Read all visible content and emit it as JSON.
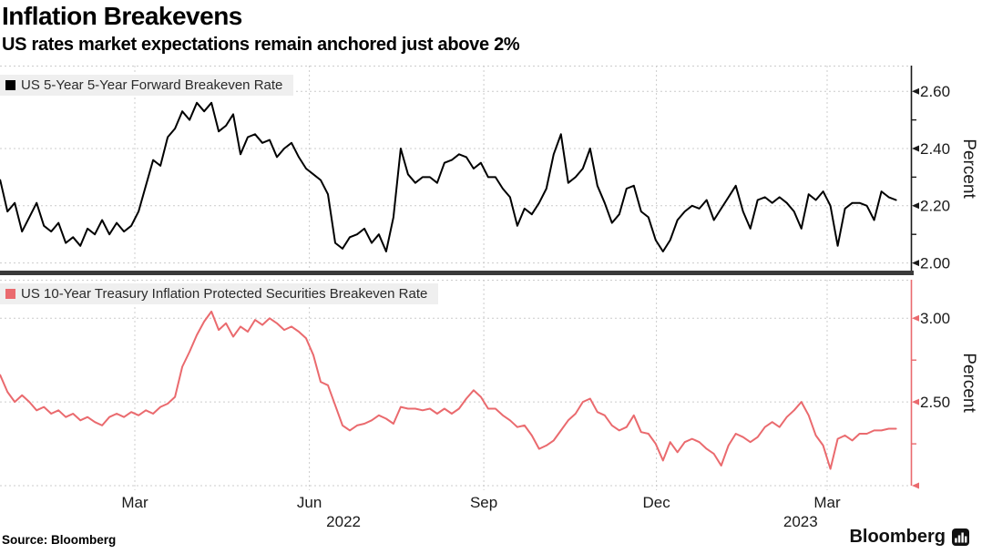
{
  "header": {
    "title": "Inflation Breakevens",
    "subtitle": "US rates market expectations remain anchored just above 2%"
  },
  "source": {
    "label": "Source: Bloomberg"
  },
  "branding": {
    "logo_text": "Bloomberg"
  },
  "colors": {
    "grid": "#cccccc",
    "separator": "#3a3a3a",
    "text": "#1a1a1a",
    "legend_bg": "#efefef",
    "series_top": "#000000",
    "series_bottom": "#ea6a6e"
  },
  "chart_data": {
    "type": "line",
    "x_unit": "days since 2022-01-01",
    "x_range": [
      -12.1,
      468.2
    ],
    "x_start_day": -12,
    "x_step_days": 3.84,
    "x_ticks": [
      {
        "day": 59,
        "label": "Mar"
      },
      {
        "day": 151,
        "label": "Jun"
      },
      {
        "day": 243,
        "label": "Sep"
      },
      {
        "day": 334,
        "label": "Dec"
      },
      {
        "day": 424,
        "label": "Mar"
      }
    ],
    "x_year_labels": [
      {
        "day": 169,
        "label": "2022"
      },
      {
        "day": 410,
        "label": "2023"
      }
    ],
    "panels": [
      {
        "legend": "US 5-Year 5-Year Forward Breakeven Rate",
        "ylabel": "Percent",
        "color": "#000000",
        "axis_color": "#1a1a1a",
        "ylim": [
          1.97,
          2.69
        ],
        "y_ticks": [
          {
            "value": 2.6,
            "label": "2.60"
          },
          {
            "value": 2.4,
            "label": "2.40"
          },
          {
            "value": 2.2,
            "label": "2.20"
          },
          {
            "value": 2.0,
            "label": "2.00"
          }
        ],
        "y_minor_ticks": [
          2.5,
          2.3,
          2.1
        ],
        "values": [
          2.29,
          2.18,
          2.21,
          2.11,
          2.16,
          2.21,
          2.13,
          2.11,
          2.14,
          2.07,
          2.09,
          2.06,
          2.12,
          2.1,
          2.15,
          2.1,
          2.14,
          2.11,
          2.13,
          2.18,
          2.27,
          2.36,
          2.34,
          2.44,
          2.47,
          2.53,
          2.5,
          2.56,
          2.53,
          2.56,
          2.46,
          2.48,
          2.52,
          2.38,
          2.44,
          2.45,
          2.42,
          2.43,
          2.37,
          2.4,
          2.42,
          2.37,
          2.33,
          2.31,
          2.29,
          2.24,
          2.07,
          2.05,
          2.09,
          2.1,
          2.12,
          2.07,
          2.1,
          2.04,
          2.16,
          2.4,
          2.31,
          2.28,
          2.3,
          2.3,
          2.28,
          2.35,
          2.36,
          2.38,
          2.37,
          2.33,
          2.35,
          2.3,
          2.3,
          2.26,
          2.23,
          2.13,
          2.19,
          2.17,
          2.21,
          2.26,
          2.38,
          2.45,
          2.28,
          2.3,
          2.33,
          2.4,
          2.27,
          2.21,
          2.14,
          2.17,
          2.26,
          2.27,
          2.18,
          2.16,
          2.08,
          2.04,
          2.08,
          2.15,
          2.18,
          2.2,
          2.19,
          2.22,
          2.15,
          2.19,
          2.23,
          2.27,
          2.18,
          2.12,
          2.22,
          2.23,
          2.21,
          2.23,
          2.21,
          2.18,
          2.12,
          2.24,
          2.22,
          2.25,
          2.2,
          2.06,
          2.19,
          2.21,
          2.21,
          2.2,
          2.15,
          2.25,
          2.23,
          2.22
        ]
      },
      {
        "legend": "US 10-Year Treasury Inflation Protected Securities Breakeven Rate",
        "ylabel": "Percent",
        "color": "#ea6a6e",
        "axis_color": "#ea6a6e",
        "ylim": [
          2.0,
          3.23
        ],
        "y_ticks": [
          {
            "value": 3.0,
            "label": "3.00"
          },
          {
            "value": 2.5,
            "label": "2.50"
          },
          {
            "value": 2.0,
            "label": ""
          }
        ],
        "y_minor_ticks": [
          2.75,
          2.25
        ],
        "values": [
          2.66,
          2.56,
          2.5,
          2.54,
          2.5,
          2.45,
          2.47,
          2.43,
          2.45,
          2.41,
          2.43,
          2.39,
          2.41,
          2.38,
          2.36,
          2.41,
          2.43,
          2.41,
          2.44,
          2.42,
          2.45,
          2.43,
          2.47,
          2.49,
          2.53,
          2.71,
          2.8,
          2.9,
          2.98,
          3.04,
          2.93,
          2.97,
          2.89,
          2.95,
          2.92,
          2.99,
          2.96,
          3.0,
          2.97,
          2.93,
          2.95,
          2.92,
          2.88,
          2.78,
          2.62,
          2.6,
          2.48,
          2.36,
          2.33,
          2.36,
          2.37,
          2.39,
          2.42,
          2.4,
          2.37,
          2.47,
          2.46,
          2.46,
          2.45,
          2.46,
          2.43,
          2.46,
          2.43,
          2.46,
          2.52,
          2.57,
          2.53,
          2.46,
          2.46,
          2.42,
          2.39,
          2.35,
          2.36,
          2.3,
          2.22,
          2.24,
          2.27,
          2.33,
          2.39,
          2.43,
          2.5,
          2.52,
          2.44,
          2.42,
          2.36,
          2.33,
          2.35,
          2.42,
          2.32,
          2.31,
          2.25,
          2.15,
          2.26,
          2.2,
          2.26,
          2.28,
          2.26,
          2.22,
          2.19,
          2.12,
          2.24,
          2.31,
          2.29,
          2.26,
          2.29,
          2.35,
          2.38,
          2.35,
          2.41,
          2.45,
          2.5,
          2.42,
          2.3,
          2.24,
          2.1,
          2.28,
          2.3,
          2.27,
          2.31,
          2.31,
          2.33,
          2.33,
          2.34,
          2.34
        ]
      }
    ]
  }
}
